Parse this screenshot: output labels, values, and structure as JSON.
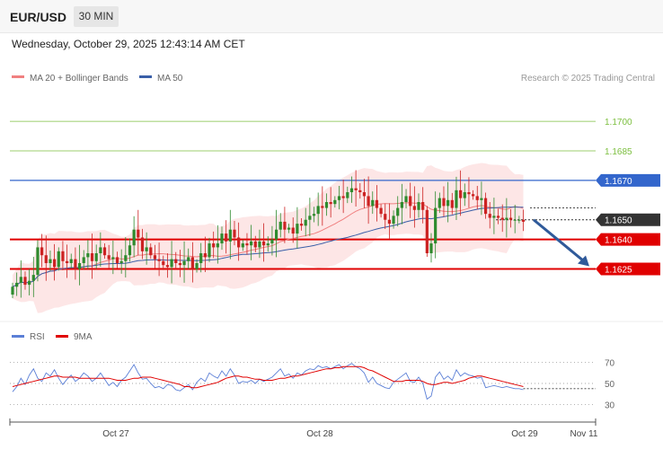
{
  "header": {
    "symbol": "EUR/USD",
    "timeframe": "30 MIN",
    "datetime": "Wednesday, October 29, 2025 12:43:14 AM CET"
  },
  "price_panel": {
    "legend": [
      {
        "label": "MA 20 + Bollinger Bands",
        "color": "#f08080"
      },
      {
        "label": "MA 50",
        "color": "#3a5fa8"
      }
    ],
    "copyright": "Research © 2025 Trading Central"
  },
  "rsi_panel": {
    "legend": [
      {
        "label": "RSI",
        "color": "#5b7fd6"
      },
      {
        "label": "9MA",
        "color": "#e00000"
      }
    ]
  },
  "colors": {
    "up_candle": "#2e8b2e",
    "down_candle": "#cc2222",
    "support": "#e00000",
    "resistance_blue": "#3366cc",
    "target_green": "#7cbf3f",
    "current_price_box": "#333333",
    "arrow": "#2f5a9a",
    "band_fill": "#fcdede"
  },
  "chart_data": [
    {
      "type": "candlestick",
      "series_name": "EUR/USD",
      "ylim": [
        1.1602,
        1.1716
      ],
      "price_levels": [
        {
          "price": 1.17,
          "label": "1.1700",
          "style": "green-thin"
        },
        {
          "price": 1.1685,
          "label": "1.1685",
          "style": "green-thin"
        },
        {
          "price": 1.167,
          "label": "1.1670",
          "style": "blue"
        },
        {
          "price": 1.165,
          "label": "1.1650",
          "style": "current-dotted"
        },
        {
          "price": 1.164,
          "label": "1.1640",
          "style": "red-thick"
        },
        {
          "price": 1.1625,
          "label": "1.1625",
          "style": "red-thick"
        }
      ],
      "x_labels": [
        "Oct 27",
        "Oct 28",
        "Oct 29",
        "Nov 11"
      ],
      "forecast_arrow": {
        "from": 1.165,
        "to": 1.1625
      },
      "closes": [
        1.1616,
        1.1618,
        1.1621,
        1.1617,
        1.1619,
        1.1622,
        1.1636,
        1.1632,
        1.1628,
        1.163,
        1.1626,
        1.1634,
        1.1629,
        1.1628,
        1.163,
        1.1625,
        1.1628,
        1.1631,
        1.1633,
        1.1629,
        1.1633,
        1.1636,
        1.1632,
        1.163,
        1.1631,
        1.1628,
        1.1629,
        1.1632,
        1.1637,
        1.1645,
        1.1641,
        1.1634,
        1.1636,
        1.1632,
        1.163,
        1.1629,
        1.1627,
        1.1626,
        1.163,
        1.1628,
        1.1627,
        1.1629,
        1.1631,
        1.1625,
        1.1628,
        1.1633,
        1.1631,
        1.1638,
        1.1636,
        1.1638,
        1.1643,
        1.1639,
        1.1645,
        1.1641,
        1.1636,
        1.1638,
        1.1637,
        1.1639,
        1.1636,
        1.1639,
        1.1637,
        1.1638,
        1.164,
        1.1645,
        1.1649,
        1.1645,
        1.1646,
        1.1643,
        1.1648,
        1.1647,
        1.165,
        1.1652,
        1.1653,
        1.1657,
        1.1656,
        1.1659,
        1.1658,
        1.166,
        1.1662,
        1.1661,
        1.1664,
        1.1666,
        1.1665,
        1.1664,
        1.1662,
        1.1657,
        1.166,
        1.1656,
        1.1653,
        1.165,
        1.1648,
        1.1652,
        1.1656,
        1.1659,
        1.1662,
        1.1657,
        1.1655,
        1.1659,
        1.1655,
        1.1633,
        1.1638,
        1.1656,
        1.1661,
        1.1657,
        1.166,
        1.1656,
        1.1665,
        1.1661,
        1.1664,
        1.1663,
        1.1662,
        1.166,
        1.1661,
        1.1653,
        1.1651,
        1.1652,
        1.1651,
        1.165,
        1.1651,
        1.165,
        1.165,
        1.165,
        1.1649
      ]
    },
    {
      "type": "line",
      "series_name": "RSI",
      "ylim": [
        20,
        80
      ],
      "y_ticks": [
        30,
        50,
        70
      ],
      "x_labels": [
        "Oct 27",
        "Oct 28",
        "Oct 29",
        "Nov 11"
      ],
      "rsi": [
        42,
        47,
        55,
        49,
        58,
        64,
        55,
        52,
        60,
        57,
        63,
        55,
        49,
        54,
        58,
        52,
        55,
        60,
        57,
        52,
        55,
        60,
        54,
        48,
        51,
        47,
        53,
        56,
        62,
        68,
        60,
        54,
        55,
        50,
        46,
        47,
        45,
        49,
        48,
        44,
        43,
        46,
        49,
        44,
        51,
        55,
        52,
        60,
        57,
        55,
        62,
        57,
        64,
        58,
        50,
        52,
        51,
        53,
        50,
        54,
        52,
        54,
        56,
        60,
        64,
        57,
        59,
        55,
        60,
        58,
        62,
        64,
        63,
        67,
        65,
        66,
        64,
        66,
        68,
        64,
        67,
        69,
        66,
        64,
        60,
        51,
        56,
        50,
        48,
        46,
        45,
        51,
        54,
        57,
        60,
        52,
        51,
        56,
        50,
        35,
        38,
        56,
        61,
        54,
        57,
        53,
        63,
        57,
        60,
        58,
        57,
        55,
        56,
        46,
        47,
        48,
        47,
        46,
        47,
        46,
        45,
        45,
        44
      ],
      "ma9": [
        47,
        48,
        49,
        50,
        51,
        52,
        53,
        54,
        55,
        56,
        57,
        57,
        56,
        56,
        56,
        56,
        55,
        55,
        55,
        55,
        55,
        55,
        55,
        55,
        54,
        53,
        53,
        53,
        54,
        55,
        55,
        56,
        56,
        56,
        55,
        54,
        53,
        52,
        51,
        50,
        49,
        47,
        47,
        46,
        46,
        47,
        48,
        49,
        50,
        51,
        53,
        55,
        56,
        57,
        57,
        56,
        56,
        55,
        54,
        54,
        53,
        53,
        53,
        54,
        55,
        55,
        56,
        57,
        57,
        58,
        59,
        60,
        61,
        62,
        63,
        64,
        64,
        65,
        65,
        66,
        66,
        66,
        66,
        66,
        65,
        63,
        62,
        60,
        58,
        56,
        54,
        52,
        52,
        52,
        53,
        53,
        53,
        53,
        52,
        50,
        49,
        49,
        50,
        51,
        51,
        50,
        51,
        52,
        53,
        55,
        56,
        57,
        57,
        56,
        55,
        54,
        53,
        52,
        51,
        50,
        49,
        48,
        47
      ]
    }
  ]
}
